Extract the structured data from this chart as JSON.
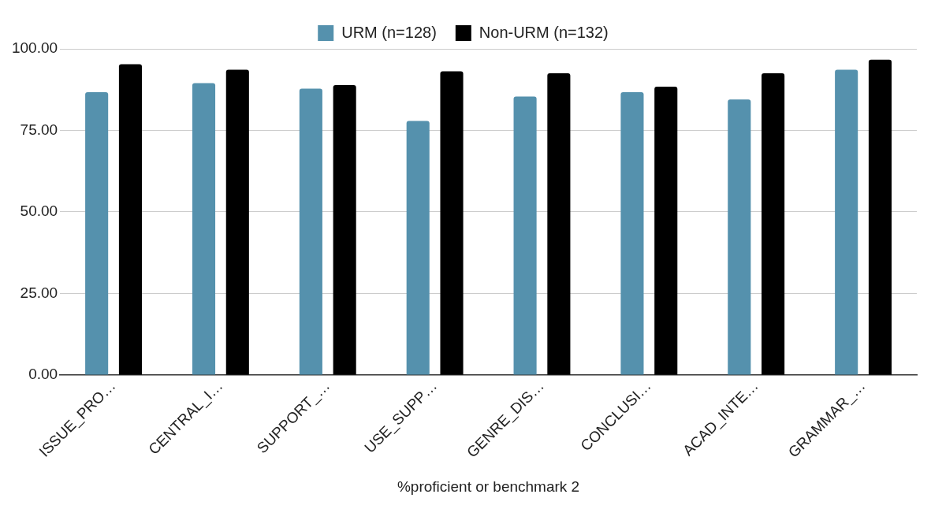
{
  "chart_data": {
    "type": "bar",
    "xlabel": "%proficient or benchmark 2",
    "categories": [
      "ISSUE_PRO…",
      "CENTRAL_I…",
      "SUPPORT_…",
      "USE_SUPP…",
      "GENRE_DIS…",
      "CONCLUSI…",
      "ACAD_INTE…",
      "GRAMMAR_…"
    ],
    "series": [
      {
        "name": "URM (n=128)",
        "color": "#5591ad",
        "values": [
          86.7,
          89.5,
          87.8,
          77.9,
          85.4,
          86.7,
          84.5,
          93.6
        ]
      },
      {
        "name": "Non-URM (n=132)",
        "color": "#000000",
        "values": [
          95.3,
          93.6,
          88.9,
          93.1,
          92.5,
          88.4,
          92.5,
          96.7
        ]
      }
    ],
    "ylim": [
      0,
      100
    ],
    "yticks": [
      {
        "value": 0,
        "label": "0.00"
      },
      {
        "value": 25,
        "label": "25.00"
      },
      {
        "value": 50,
        "label": "50.00"
      },
      {
        "value": 75,
        "label": "75.00"
      },
      {
        "value": 100,
        "label": "100.00"
      }
    ],
    "grid": "y",
    "legend": "top"
  }
}
